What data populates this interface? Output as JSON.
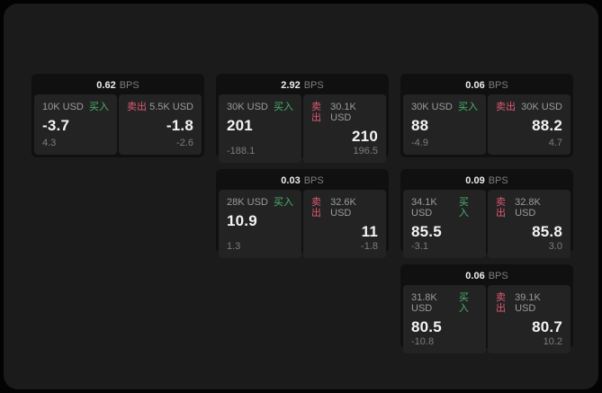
{
  "labels": {
    "bps": "BPS",
    "buy": "买入",
    "sell": "卖出"
  },
  "colors": {
    "buy_accent": "#49b36b",
    "sell_accent": "#dd5a72",
    "panel_bg": "#1b1b1b",
    "card_bg": "#101011",
    "pane_bg": "#232324"
  },
  "cards": [
    {
      "bps": "0.62",
      "buy": {
        "amount": "10K USD",
        "value": "-3.7",
        "delta": "4.3"
      },
      "sell": {
        "amount": "5.5K USD",
        "value": "-1.8",
        "delta": "-2.6"
      }
    },
    {
      "bps": "2.92",
      "buy": {
        "amount": "30K USD",
        "value": "201",
        "delta": "-188.1"
      },
      "sell": {
        "amount": "30.1K USD",
        "value": "210",
        "delta": "196.5"
      }
    },
    {
      "bps": "0.06",
      "buy": {
        "amount": "30K USD",
        "value": "88",
        "delta": "-4.9"
      },
      "sell": {
        "amount": "30K USD",
        "value": "88.2",
        "delta": "4.7"
      }
    },
    {
      "bps": "0.03",
      "buy": {
        "amount": "28K USD",
        "value": "10.9",
        "delta": "1.3"
      },
      "sell": {
        "amount": "32.6K USD",
        "value": "11",
        "delta": "-1.8"
      }
    },
    {
      "bps": "0.09",
      "buy": {
        "amount": "34.1K USD",
        "value": "85.5",
        "delta": "-3.1"
      },
      "sell": {
        "amount": "32.8K USD",
        "value": "85.8",
        "delta": "3.0"
      }
    },
    {
      "bps": "0.06",
      "buy": {
        "amount": "31.8K USD",
        "value": "80.5",
        "delta": "-10.8"
      },
      "sell": {
        "amount": "39.1K USD",
        "value": "80.7",
        "delta": "10.2"
      }
    }
  ]
}
